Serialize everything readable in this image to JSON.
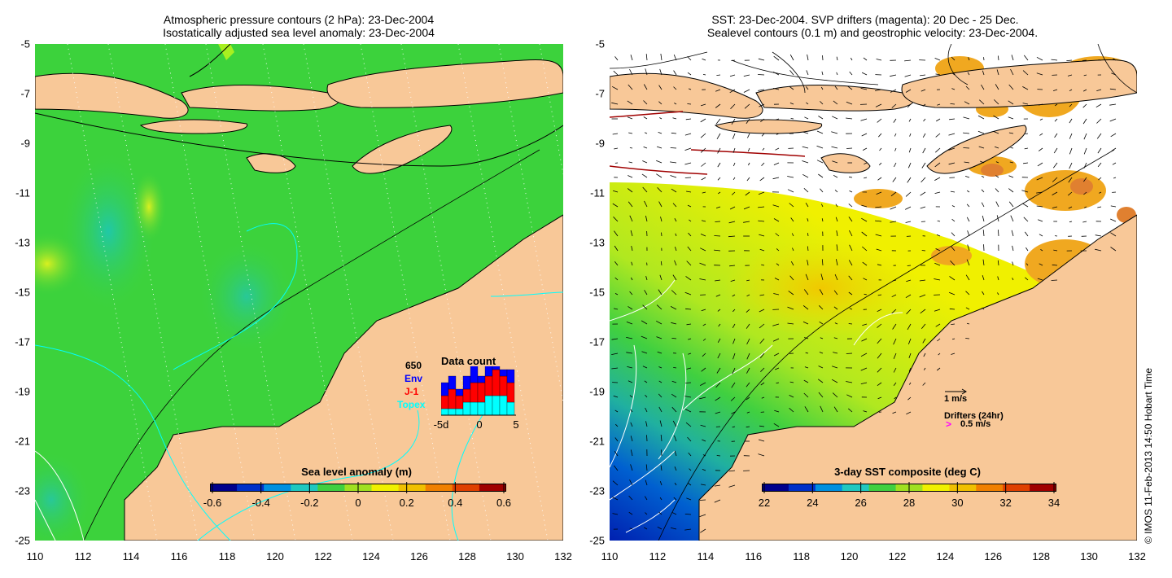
{
  "left_panel": {
    "title_line1": "Atmospheric pressure contours (2 hPa): 23-Dec-2004",
    "title_line2": "Isostatically adjusted sea level anomaly: 23-Dec-2004",
    "colorbar": {
      "title": "Sea level anomaly (m)",
      "labels": [
        "-0.6",
        "-0.4",
        "-0.2",
        "0",
        "0.2",
        "0.4",
        "0.6"
      ],
      "colors": [
        "#00008c",
        "#0030c8",
        "#0090e0",
        "#20c8c0",
        "#40d040",
        "#a0e020",
        "#f0f000",
        "#f0c000",
        "#f08000",
        "#e04000",
        "#a00000"
      ]
    },
    "data_count": {
      "title": "Data count",
      "total": "650",
      "env_label": "Env",
      "j1_label": "J-1",
      "topex_label": "Topex",
      "x_labels": [
        "-5d",
        "0",
        "5"
      ],
      "env_color": "#0000ff",
      "j1_color": "#ff0000",
      "topex_color": "#00ffff",
      "bars": [
        {
          "topex": 1,
          "j1": 2,
          "env": 2
        },
        {
          "topex": 1,
          "j1": 3,
          "env": 2
        },
        {
          "topex": 1,
          "j1": 2,
          "env": 1
        },
        {
          "topex": 2,
          "j1": 2,
          "env": 2
        },
        {
          "topex": 2,
          "j1": 3,
          "env": 4
        },
        {
          "topex": 2,
          "j1": 3,
          "env": 1
        },
        {
          "topex": 3,
          "j1": 3,
          "env": 2
        },
        {
          "topex": 3,
          "j1": 4,
          "env": 3
        },
        {
          "topex": 3,
          "j1": 3,
          "env": 1
        },
        {
          "topex": 2,
          "j1": 3,
          "env": 2
        }
      ]
    }
  },
  "right_panel": {
    "title_line1": "SST: 23-Dec-2004. SVP drifters (magenta): 20 Dec - 25 Dec.",
    "title_line2": "Sealevel contours (0.1 m) and geostrophic velocity: 23-Dec-2004.",
    "colorbar": {
      "title": "3-day SST composite (deg C)",
      "labels": [
        "22",
        "24",
        "26",
        "28",
        "30",
        "32",
        "34"
      ],
      "colors": [
        "#00008c",
        "#0030c8",
        "#0090e0",
        "#20c8c0",
        "#40d040",
        "#a0e020",
        "#f0f000",
        "#f0c000",
        "#f08000",
        "#e04000",
        "#a00000"
      ]
    },
    "velocity_legend": "1 m/s",
    "drifters_legend": "Drifters (24hr)",
    "drifters_speed": "0.5 m/s",
    "drifter_color": "#ff00ff"
  },
  "axes": {
    "x_labels": [
      "110",
      "112",
      "114",
      "116",
      "118",
      "120",
      "122",
      "124",
      "126",
      "128",
      "130",
      "132"
    ],
    "y_labels": [
      "-5",
      "-7",
      "-9",
      "-11",
      "-13",
      "-15",
      "-17",
      "-19",
      "-21",
      "-23",
      "-25"
    ]
  },
  "colors": {
    "land": "#f8c898",
    "ocean_green": "#3cd23c",
    "coast": "#000000"
  },
  "copyright": "© IMOS 11-Feb-2013 14:50 Hobart Time"
}
